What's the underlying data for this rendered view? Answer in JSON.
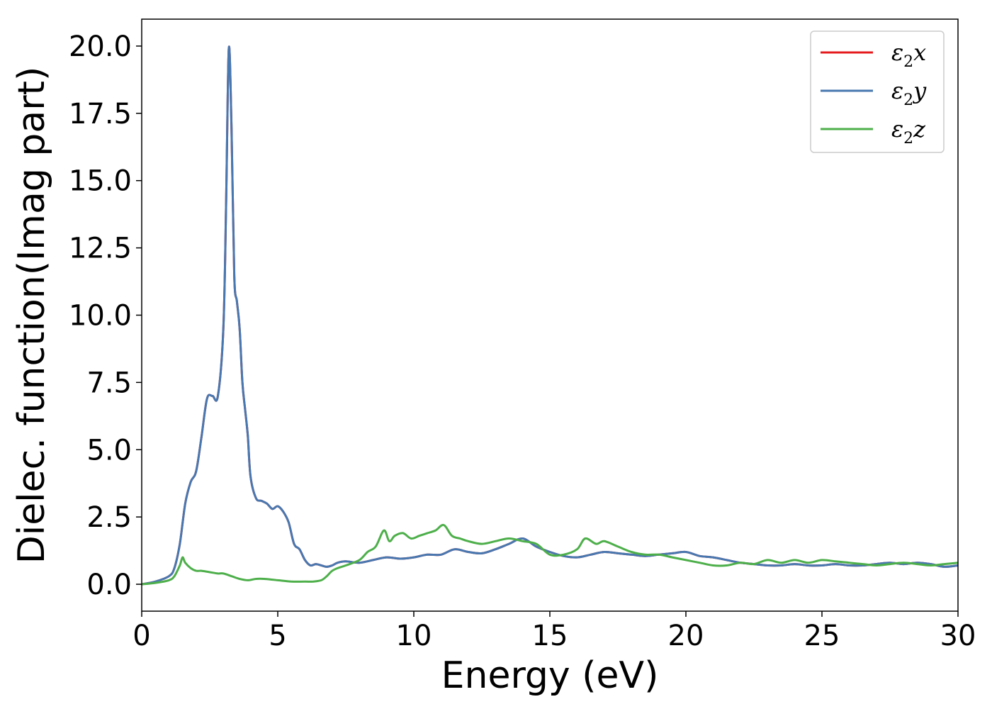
{
  "chart_data": {
    "type": "line",
    "title": "",
    "xlabel": "Energy (eV)",
    "ylabel": "Dielec. function(Imag part)",
    "xlim": [
      0,
      30
    ],
    "ylim": [
      -1.0,
      21.0
    ],
    "xticks": [
      0,
      5,
      10,
      15,
      20,
      25,
      30
    ],
    "xtick_labels": [
      "0",
      "5",
      "10",
      "15",
      "20",
      "25",
      "30"
    ],
    "yticks": [
      0.0,
      2.5,
      5.0,
      7.5,
      10.0,
      12.5,
      15.0,
      17.5,
      20.0
    ],
    "ytick_labels": [
      "0.0",
      "2.5",
      "5.0",
      "7.5",
      "10.0",
      "12.5",
      "15.0",
      "17.5",
      "20.0"
    ],
    "grid": false,
    "legend_position": "top-right",
    "series": [
      {
        "name": "ε2x",
        "legend_base": "ε",
        "legend_sub": "2",
        "legend_suffix": "x",
        "color": "#e41a1c",
        "x": [
          0,
          0.5,
          1.0,
          1.2,
          1.4,
          1.6,
          1.8,
          2.0,
          2.2,
          2.4,
          2.6,
          2.8,
          3.0,
          3.1,
          3.2,
          3.3,
          3.4,
          3.5,
          3.6,
          3.7,
          3.8,
          3.9,
          4.0,
          4.2,
          4.4,
          4.6,
          4.8,
          5.0,
          5.2,
          5.4,
          5.6,
          5.8,
          6.0,
          6.2,
          6.4,
          6.6,
          6.8,
          7.0,
          7.2,
          7.5,
          8.0,
          8.5,
          9.0,
          9.5,
          10.0,
          10.5,
          11.0,
          11.5,
          12.0,
          12.5,
          13.0,
          13.5,
          14.0,
          14.5,
          15.0,
          15.5,
          16.0,
          16.5,
          17.0,
          17.5,
          18.0,
          18.5,
          19.0,
          19.5,
          20.0,
          20.5,
          21.0,
          21.5,
          22.0,
          22.5,
          23.0,
          23.5,
          24.0,
          24.5,
          25.0,
          25.5,
          26.0,
          26.5,
          27.0,
          27.5,
          28.0,
          28.5,
          29.0,
          29.5,
          30.0
        ],
        "y": [
          0.0,
          0.1,
          0.3,
          0.6,
          1.5,
          3.0,
          3.8,
          4.2,
          5.5,
          6.9,
          7.0,
          7.0,
          9.5,
          14.0,
          19.9,
          17.0,
          11.5,
          10.5,
          9.5,
          7.5,
          6.5,
          5.5,
          4.0,
          3.2,
          3.1,
          3.0,
          2.8,
          2.9,
          2.7,
          2.3,
          1.5,
          1.3,
          0.9,
          0.7,
          0.75,
          0.7,
          0.65,
          0.7,
          0.8,
          0.85,
          0.8,
          0.9,
          1.0,
          0.95,
          1.0,
          1.1,
          1.1,
          1.3,
          1.2,
          1.15,
          1.3,
          1.5,
          1.7,
          1.4,
          1.2,
          1.05,
          1.0,
          1.1,
          1.2,
          1.15,
          1.1,
          1.05,
          1.1,
          1.15,
          1.2,
          1.05,
          1.0,
          0.9,
          0.8,
          0.75,
          0.7,
          0.7,
          0.75,
          0.7,
          0.7,
          0.75,
          0.7,
          0.7,
          0.75,
          0.8,
          0.75,
          0.8,
          0.75,
          0.65,
          0.7
        ]
      },
      {
        "name": "ε2y",
        "legend_base": "ε",
        "legend_sub": "2",
        "legend_suffix": "y",
        "color": "#4878b0",
        "x": [
          0,
          0.5,
          1.0,
          1.2,
          1.4,
          1.6,
          1.8,
          2.0,
          2.2,
          2.4,
          2.6,
          2.8,
          3.0,
          3.1,
          3.2,
          3.3,
          3.4,
          3.5,
          3.6,
          3.7,
          3.8,
          3.9,
          4.0,
          4.2,
          4.4,
          4.6,
          4.8,
          5.0,
          5.2,
          5.4,
          5.6,
          5.8,
          6.0,
          6.2,
          6.4,
          6.6,
          6.8,
          7.0,
          7.2,
          7.5,
          8.0,
          8.5,
          9.0,
          9.5,
          10.0,
          10.5,
          11.0,
          11.5,
          12.0,
          12.5,
          13.0,
          13.5,
          14.0,
          14.5,
          15.0,
          15.5,
          16.0,
          16.5,
          17.0,
          17.5,
          18.0,
          18.5,
          19.0,
          19.5,
          20.0,
          20.5,
          21.0,
          21.5,
          22.0,
          22.5,
          23.0,
          23.5,
          24.0,
          24.5,
          25.0,
          25.5,
          26.0,
          26.5,
          27.0,
          27.5,
          28.0,
          28.5,
          29.0,
          29.5,
          30.0
        ],
        "y": [
          0.0,
          0.1,
          0.3,
          0.6,
          1.5,
          3.0,
          3.8,
          4.2,
          5.5,
          6.9,
          7.0,
          7.0,
          9.5,
          14.0,
          19.9,
          17.0,
          11.5,
          10.5,
          9.5,
          7.5,
          6.5,
          5.5,
          4.0,
          3.2,
          3.1,
          3.0,
          2.8,
          2.9,
          2.7,
          2.3,
          1.5,
          1.3,
          0.9,
          0.7,
          0.75,
          0.7,
          0.65,
          0.7,
          0.8,
          0.85,
          0.8,
          0.9,
          1.0,
          0.95,
          1.0,
          1.1,
          1.1,
          1.3,
          1.2,
          1.15,
          1.3,
          1.5,
          1.7,
          1.4,
          1.2,
          1.05,
          1.0,
          1.1,
          1.2,
          1.15,
          1.1,
          1.05,
          1.1,
          1.15,
          1.2,
          1.05,
          1.0,
          0.9,
          0.8,
          0.75,
          0.7,
          0.7,
          0.75,
          0.7,
          0.7,
          0.75,
          0.7,
          0.7,
          0.75,
          0.8,
          0.75,
          0.8,
          0.75,
          0.65,
          0.7
        ]
      },
      {
        "name": "ε2z",
        "legend_base": "ε",
        "legend_sub": "2",
        "legend_suffix": "z",
        "color": "#4daf4a",
        "x": [
          0,
          0.5,
          1.0,
          1.2,
          1.4,
          1.5,
          1.6,
          1.8,
          2.0,
          2.2,
          2.5,
          2.8,
          3.0,
          3.3,
          3.6,
          3.9,
          4.2,
          4.5,
          5.0,
          5.5,
          6.0,
          6.3,
          6.6,
          6.8,
          7.0,
          7.2,
          7.5,
          8.0,
          8.3,
          8.6,
          8.9,
          9.1,
          9.3,
          9.6,
          9.9,
          10.2,
          10.5,
          10.8,
          11.1,
          11.4,
          11.7,
          12.0,
          12.5,
          13.0,
          13.5,
          14.0,
          14.5,
          15.0,
          15.5,
          16.0,
          16.3,
          16.7,
          17.0,
          17.5,
          18.0,
          18.5,
          19.0,
          19.5,
          20.0,
          20.5,
          21.0,
          21.5,
          22.0,
          22.5,
          23.0,
          23.5,
          24.0,
          24.5,
          25.0,
          25.5,
          26.0,
          26.5,
          27.0,
          27.5,
          28.0,
          28.5,
          29.0,
          29.5,
          30.0
        ],
        "y": [
          0.0,
          0.05,
          0.15,
          0.3,
          0.7,
          1.0,
          0.8,
          0.6,
          0.5,
          0.5,
          0.45,
          0.4,
          0.4,
          0.3,
          0.2,
          0.15,
          0.2,
          0.2,
          0.15,
          0.1,
          0.1,
          0.1,
          0.15,
          0.3,
          0.5,
          0.6,
          0.7,
          0.9,
          1.2,
          1.4,
          2.0,
          1.6,
          1.8,
          1.9,
          1.7,
          1.8,
          1.9,
          2.0,
          2.2,
          1.8,
          1.7,
          1.6,
          1.5,
          1.6,
          1.7,
          1.6,
          1.5,
          1.1,
          1.1,
          1.3,
          1.7,
          1.5,
          1.6,
          1.4,
          1.2,
          1.1,
          1.1,
          1.0,
          0.9,
          0.8,
          0.7,
          0.7,
          0.8,
          0.75,
          0.9,
          0.8,
          0.9,
          0.8,
          0.9,
          0.85,
          0.8,
          0.75,
          0.7,
          0.75,
          0.8,
          0.75,
          0.7,
          0.75,
          0.8
        ]
      }
    ]
  }
}
